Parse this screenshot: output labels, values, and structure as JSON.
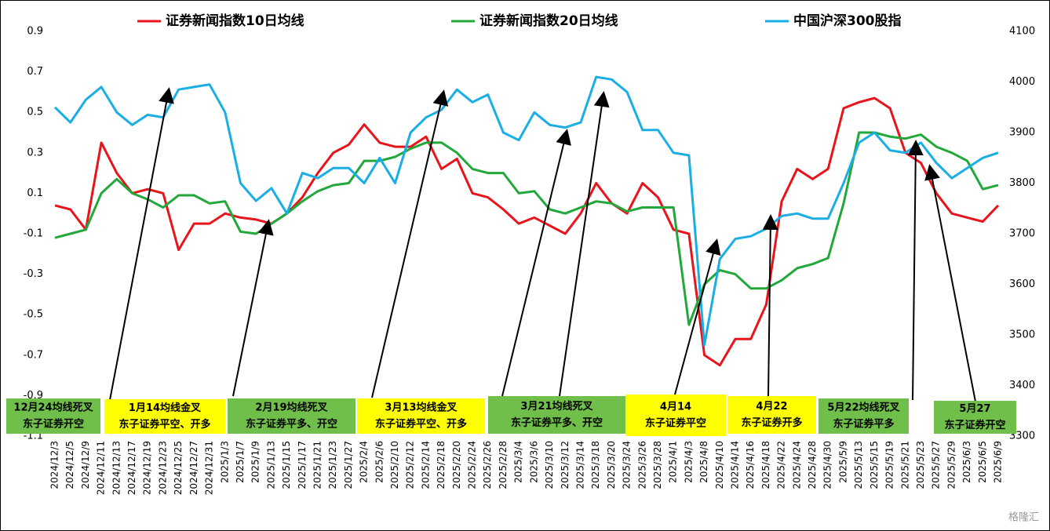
{
  "chart_data": {
    "type": "line",
    "categories": [
      "2024/12/3",
      "2024/12/5",
      "2024/12/9",
      "2024/12/11",
      "2024/12/13",
      "2024/12/17",
      "2024/12/19",
      "2024/12/23",
      "2024/12/25",
      "2024/12/27",
      "2024/12/31",
      "2025/1/3",
      "2025/1/7",
      "2025/1/9",
      "2025/1/13",
      "2025/1/15",
      "2025/1/17",
      "2025/1/21",
      "2025/1/23",
      "2025/1/27",
      "2025/2/4",
      "2025/2/6",
      "2025/2/10",
      "2025/2/12",
      "2025/2/14",
      "2025/2/18",
      "2025/2/20",
      "2025/2/24",
      "2025/2/26",
      "2025/2/28",
      "2025/3/4",
      "2025/3/6",
      "2025/3/10",
      "2025/3/12",
      "2025/3/14",
      "2025/3/18",
      "2025/3/20",
      "2025/3/24",
      "2025/3/26",
      "2025/3/28",
      "2025/4/1",
      "2025/4/3",
      "2025/4/8",
      "2025/4/10",
      "2025/4/14",
      "2025/4/16",
      "2025/4/18",
      "2025/4/22",
      "2025/4/24",
      "2025/4/28",
      "2025/4/30",
      "2025/5/9",
      "2025/5/13",
      "2025/5/15",
      "2025/5/19",
      "2025/5/21",
      "2025/5/23",
      "2025/5/27",
      "2025/5/29",
      "2025/6/3",
      "2025/6/5",
      "2025/6/9"
    ],
    "series": [
      {
        "name": "证券新闻指数10日均线",
        "color": "#e8141c",
        "axis": "y",
        "values": [
          0.04,
          0.02,
          -0.08,
          0.35,
          0.2,
          0.1,
          0.12,
          0.1,
          -0.18,
          -0.05,
          -0.05,
          0.0,
          -0.02,
          -0.03,
          -0.05,
          0.0,
          0.08,
          0.2,
          0.3,
          0.34,
          0.44,
          0.35,
          0.33,
          0.33,
          0.38,
          0.22,
          0.27,
          0.1,
          0.08,
          0.02,
          -0.05,
          -0.02,
          -0.06,
          -0.1,
          0.0,
          0.15,
          0.05,
          0.0,
          0.15,
          0.08,
          -0.08,
          -0.1,
          -0.7,
          -0.75,
          -0.62,
          -0.62,
          -0.45,
          0.06,
          0.22,
          0.17,
          0.22,
          0.52,
          0.55,
          0.57,
          0.52,
          0.3,
          0.25,
          0.1,
          0.0,
          -0.02,
          -0.04,
          0.04
        ]
      },
      {
        "name": "证券新闻指数20日均线",
        "color": "#22a83a",
        "axis": "y",
        "values": [
          -0.12,
          -0.1,
          -0.08,
          0.1,
          0.17,
          0.1,
          0.07,
          0.03,
          0.09,
          0.09,
          0.05,
          0.06,
          -0.09,
          -0.1,
          -0.05,
          0.0,
          0.06,
          0.11,
          0.14,
          0.15,
          0.26,
          0.26,
          0.28,
          0.32,
          0.35,
          0.35,
          0.3,
          0.22,
          0.2,
          0.2,
          0.1,
          0.11,
          0.02,
          0.0,
          0.03,
          0.06,
          0.05,
          0.01,
          0.03,
          0.03,
          0.03,
          -0.55,
          -0.35,
          -0.28,
          -0.3,
          -0.37,
          -0.37,
          -0.33,
          -0.27,
          -0.25,
          -0.22,
          0.05,
          0.4,
          0.4,
          0.38,
          0.37,
          0.39,
          0.33,
          0.3,
          0.26,
          0.12,
          0.14
        ]
      },
      {
        "name": "中国沪深300股指",
        "color": "#1aaee5",
        "axis": "y2",
        "values": [
          3950,
          3920,
          3965,
          3990,
          3940,
          3915,
          3935,
          3930,
          3985,
          3990,
          3995,
          3940,
          3800,
          3765,
          3790,
          3740,
          3820,
          3810,
          3830,
          3830,
          3800,
          3850,
          3800,
          3900,
          3930,
          3945,
          3985,
          3960,
          3975,
          3900,
          3885,
          3940,
          3915,
          3910,
          3920,
          4010,
          4005,
          3980,
          3905,
          3905,
          3860,
          3855,
          3480,
          3650,
          3690,
          3695,
          3710,
          3735,
          3740,
          3730,
          3730,
          3800,
          3880,
          3900,
          3865,
          3860,
          3880,
          3840,
          3810,
          3830,
          3850,
          3860
        ]
      }
    ],
    "ylim": [
      -1.1,
      0.9
    ],
    "yticks": [
      0.9,
      0.7,
      0.5,
      0.3,
      0.1,
      -0.1,
      -0.3,
      -0.5,
      -0.7,
      -0.9,
      -1.1
    ],
    "y2lim": [
      3300,
      4100
    ],
    "y2ticks": [
      4100,
      4000,
      3900,
      3800,
      3700,
      3600,
      3500,
      3400,
      3300
    ],
    "annotations": [
      {
        "lines": [
          "12月24均线死叉",
          "东子证券开空"
        ],
        "color": "#6fbf4a"
      },
      {
        "lines": [
          "1月14均线金叉",
          "东子证券平空、开多"
        ],
        "color": "#ffff00"
      },
      {
        "lines": [
          "2月19均线死叉",
          "东子证券平多、开空"
        ],
        "color": "#6fbf4a"
      },
      {
        "lines": [
          "3月13均线金叉",
          "东子证券平空、开多"
        ],
        "color": "#ffff00"
      },
      {
        "lines": [
          "3月21均线死叉",
          "东子证券平多、开空"
        ],
        "color": "#6fbf4a"
      },
      {
        "lines": [
          "4月14",
          "东子证券平空"
        ],
        "color": "#ffff00"
      },
      {
        "lines": [
          "4月22",
          "东子证券开多"
        ],
        "color": "#ffff00"
      },
      {
        "lines": [
          "5月22均线死叉",
          "东子证券平多"
        ],
        "color": "#6fbf4a"
      },
      {
        "lines": [
          "5月27",
          "东子证券开空"
        ],
        "color": "#6fbf4a"
      }
    ],
    "watermark": "格隆汇"
  }
}
